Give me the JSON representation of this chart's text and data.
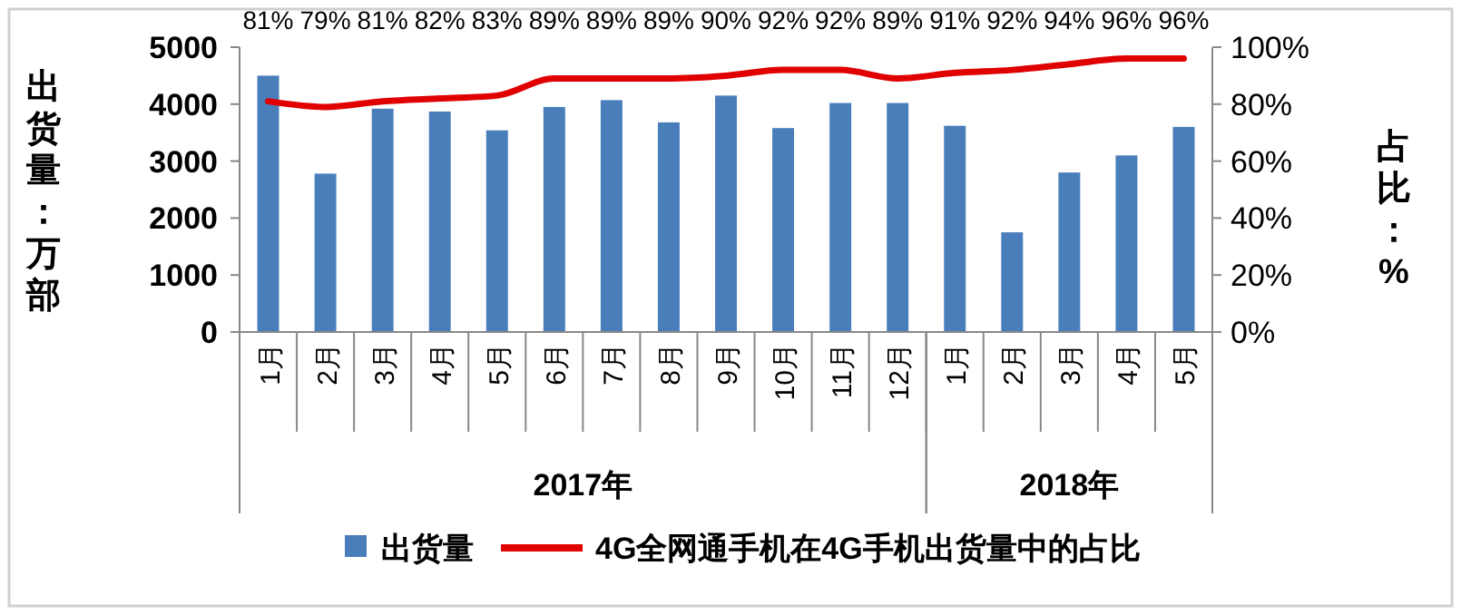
{
  "chart_data": {
    "type": "bar",
    "ylabel": "出货量：万部",
    "y2label": "占比：%",
    "categories": [
      "1月",
      "2月",
      "3月",
      "4月",
      "5月",
      "6月",
      "7月",
      "8月",
      "9月",
      "10月",
      "11月",
      "12月",
      "1月",
      "2月",
      "3月",
      "4月",
      "5月"
    ],
    "series": [
      {
        "name": "出货量",
        "color": "#4a7ebb",
        "values": [
          4500,
          2780,
          3920,
          3870,
          3540,
          3950,
          4070,
          3680,
          4150,
          3580,
          4020,
          4020,
          3620,
          1750,
          2800,
          3100,
          3600
        ]
      },
      {
        "name": "4G全网通手机在4G手机出货量中的占比",
        "type": "line",
        "axis": "y2",
        "color": "#e00000",
        "values": [
          81,
          79,
          81,
          82,
          83,
          89,
          89,
          89,
          90,
          92,
          92,
          89,
          91,
          92,
          94,
          96,
          96
        ],
        "value_labels": [
          "81%",
          "79%",
          "81%",
          "82%",
          "83%",
          "89%",
          "89%",
          "89%",
          "90%",
          "92%",
          "92%",
          "89%",
          "91%",
          "92%",
          "94%",
          "96%",
          "96%"
        ]
      }
    ],
    "ylim": [
      0,
      5000
    ],
    "yticks": [
      0,
      1000,
      2000,
      3000,
      4000,
      5000
    ],
    "y2lim": [
      0,
      100
    ],
    "y2ticks": [
      {
        "value": 0,
        "label": "0%"
      },
      {
        "value": 20,
        "label": "20%"
      },
      {
        "value": 40,
        "label": "40%"
      },
      {
        "value": 60,
        "label": "60%"
      },
      {
        "value": 80,
        "label": "80%"
      },
      {
        "value": 100,
        "label": "100%"
      }
    ],
    "annotations": [
      "2017年",
      "2018年"
    ],
    "legend": "bottom",
    "grid": false,
    "marker": "none",
    "line_style": "solid"
  }
}
